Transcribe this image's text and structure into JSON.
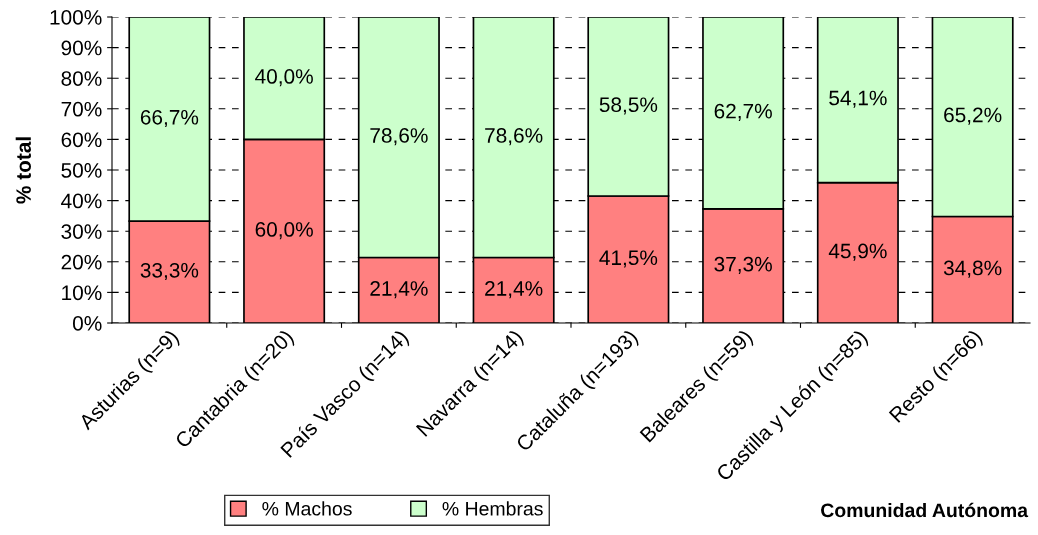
{
  "chart_data": {
    "type": "bar",
    "stacked": true,
    "xlabel": "Comunidad Autónoma",
    "ylabel": "% total",
    "categories": [
      "Asturias (n=9)",
      "Cantabria (n=20)",
      "País Vasco (n=14)",
      "Navarra (n=14)",
      "Cataluña (n=193)",
      "Baleares (n=59)",
      "Castilla y León (n=85)",
      "Resto (n=66)"
    ],
    "series": [
      {
        "name": "% Machos",
        "color": "#ff8080",
        "values": [
          33.3,
          60.0,
          21.4,
          21.4,
          41.5,
          37.3,
          45.9,
          34.8
        ],
        "value_labels": [
          "33,3%",
          "60,0%",
          "21,4%",
          "21,4%",
          "41,5%",
          "37,3%",
          "45,9%",
          "34,8%"
        ]
      },
      {
        "name": "% Hembras",
        "color": "#ccffcc",
        "values": [
          66.7,
          40.0,
          78.6,
          78.6,
          58.5,
          62.7,
          54.1,
          65.2
        ],
        "value_labels": [
          "66,7%",
          "40,0%",
          "78,6%",
          "78,6%",
          "58,5%",
          "62,7%",
          "54,1%",
          "65,2%"
        ]
      }
    ],
    "ylim": [
      0,
      100
    ],
    "yticks": [
      {
        "value": 0,
        "label": "0%"
      },
      {
        "value": 10,
        "label": "10%"
      },
      {
        "value": 20,
        "label": "20%"
      },
      {
        "value": 30,
        "label": "30%"
      },
      {
        "value": 40,
        "label": "40%"
      },
      {
        "value": 50,
        "label": "50%"
      },
      {
        "value": 60,
        "label": "60%"
      },
      {
        "value": 70,
        "label": "70%"
      },
      {
        "value": 80,
        "label": "80%"
      },
      {
        "value": 90,
        "label": "90%"
      },
      {
        "value": 100,
        "label": "100%"
      }
    ],
    "grid": "y",
    "legend": "bottom"
  }
}
